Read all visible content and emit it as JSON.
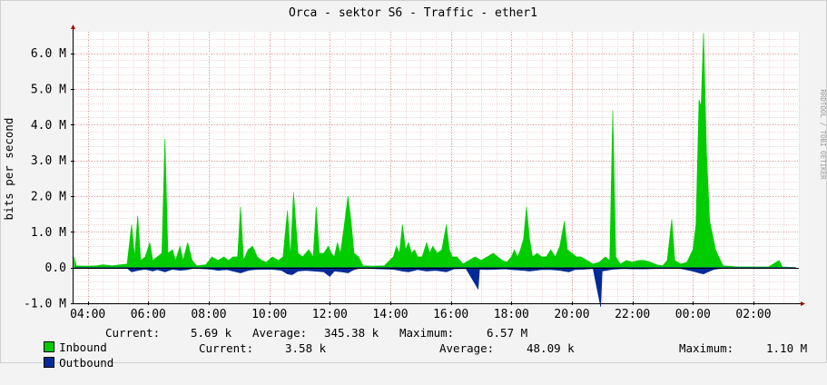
{
  "chart_data": {
    "type": "area",
    "title": "Orca - sektor S6 - Traffic - ether1",
    "ylabel": "bits per second",
    "xlabel": "",
    "ylim": [
      -1.0,
      6.6
    ],
    "y_ticks": [
      "-1.0 M",
      "0.0",
      "1.0 M",
      "2.0 M",
      "3.0 M",
      "4.0 M",
      "5.0 M",
      "6.0 M"
    ],
    "y_tick_values": [
      -1.0,
      0.0,
      1.0,
      2.0,
      3.0,
      4.0,
      5.0,
      6.0
    ],
    "x_range_hours": [
      3.5,
      27.5
    ],
    "x_ticks": [
      "04:00",
      "06:00",
      "08:00",
      "10:00",
      "12:00",
      "14:00",
      "16:00",
      "18:00",
      "20:00",
      "22:00",
      "00:00",
      "02:00"
    ],
    "x_tick_values": [
      4,
      6,
      8,
      10,
      12,
      14,
      16,
      18,
      20,
      22,
      24,
      26
    ],
    "grid": true,
    "watermark": "RRDTOOL / TOBI OETIKER",
    "series": [
      {
        "name": "Inbound",
        "color": "#00cc00",
        "unit": "M",
        "points": [
          [
            3.55,
            0.3
          ],
          [
            3.62,
            0.05
          ],
          [
            3.9,
            0.04
          ],
          [
            4.3,
            0.05
          ],
          [
            4.5,
            0.08
          ],
          [
            4.8,
            0.05
          ],
          [
            5.3,
            0.1
          ],
          [
            5.45,
            1.2
          ],
          [
            5.55,
            0.3
          ],
          [
            5.65,
            1.45
          ],
          [
            5.75,
            0.2
          ],
          [
            5.9,
            0.3
          ],
          [
            6.05,
            0.7
          ],
          [
            6.15,
            0.2
          ],
          [
            6.3,
            0.3
          ],
          [
            6.45,
            0.4
          ],
          [
            6.55,
            3.6
          ],
          [
            6.65,
            0.4
          ],
          [
            6.8,
            0.5
          ],
          [
            6.9,
            0.2
          ],
          [
            7.05,
            0.6
          ],
          [
            7.15,
            0.2
          ],
          [
            7.3,
            0.7
          ],
          [
            7.45,
            0.2
          ],
          [
            7.6,
            0.05
          ],
          [
            7.9,
            0.08
          ],
          [
            8.1,
            0.3
          ],
          [
            8.3,
            0.2
          ],
          [
            8.5,
            0.3
          ],
          [
            8.65,
            0.2
          ],
          [
            8.8,
            0.3
          ],
          [
            8.95,
            0.3
          ],
          [
            9.05,
            1.7
          ],
          [
            9.15,
            0.2
          ],
          [
            9.3,
            0.5
          ],
          [
            9.45,
            0.6
          ],
          [
            9.6,
            0.3
          ],
          [
            9.75,
            0.2
          ],
          [
            9.9,
            0.15
          ],
          [
            10.1,
            0.3
          ],
          [
            10.3,
            0.2
          ],
          [
            10.45,
            0.3
          ],
          [
            10.6,
            1.6
          ],
          [
            10.7,
            0.3
          ],
          [
            10.8,
            2.1
          ],
          [
            10.95,
            0.4
          ],
          [
            11.1,
            0.3
          ],
          [
            11.3,
            0.5
          ],
          [
            11.45,
            0.3
          ],
          [
            11.55,
            1.7
          ],
          [
            11.65,
            0.4
          ],
          [
            11.8,
            0.4
          ],
          [
            11.95,
            0.6
          ],
          [
            12.05,
            0.4
          ],
          [
            12.15,
            0.3
          ],
          [
            12.25,
            0.7
          ],
          [
            12.35,
            0.4
          ],
          [
            12.45,
            1.0
          ],
          [
            12.6,
            2.0
          ],
          [
            12.7,
            1.3
          ],
          [
            12.8,
            0.4
          ],
          [
            12.95,
            0.3
          ],
          [
            13.1,
            0.05
          ],
          [
            13.4,
            0.04
          ],
          [
            13.8,
            0.05
          ],
          [
            14.1,
            0.3
          ],
          [
            14.2,
            0.6
          ],
          [
            14.3,
            0.4
          ],
          [
            14.4,
            1.2
          ],
          [
            14.5,
            0.5
          ],
          [
            14.6,
            0.7
          ],
          [
            14.7,
            0.4
          ],
          [
            14.8,
            0.5
          ],
          [
            14.9,
            0.3
          ],
          [
            15.05,
            0.3
          ],
          [
            15.2,
            0.7
          ],
          [
            15.3,
            0.4
          ],
          [
            15.4,
            0.6
          ],
          [
            15.55,
            0.4
          ],
          [
            15.7,
            0.5
          ],
          [
            15.85,
            1.2
          ],
          [
            15.95,
            0.5
          ],
          [
            16.05,
            0.3
          ],
          [
            16.2,
            0.3
          ],
          [
            16.4,
            0.1
          ],
          [
            16.6,
            0.2
          ],
          [
            16.8,
            0.3
          ],
          [
            17.0,
            0.2
          ],
          [
            17.2,
            0.3
          ],
          [
            17.4,
            0.4
          ],
          [
            17.55,
            0.3
          ],
          [
            17.7,
            0.2
          ],
          [
            17.85,
            0.15
          ],
          [
            18.0,
            0.3
          ],
          [
            18.1,
            0.5
          ],
          [
            18.2,
            0.3
          ],
          [
            18.3,
            0.5
          ],
          [
            18.4,
            0.8
          ],
          [
            18.5,
            1.7
          ],
          [
            18.6,
            0.8
          ],
          [
            18.7,
            0.3
          ],
          [
            18.85,
            0.4
          ],
          [
            19.0,
            0.3
          ],
          [
            19.15,
            0.3
          ],
          [
            19.3,
            0.5
          ],
          [
            19.45,
            0.3
          ],
          [
            19.6,
            0.6
          ],
          [
            19.75,
            1.3
          ],
          [
            19.85,
            0.5
          ],
          [
            20.0,
            0.4
          ],
          [
            20.15,
            0.3
          ],
          [
            20.3,
            0.3
          ],
          [
            20.5,
            0.2
          ],
          [
            20.7,
            0.1
          ],
          [
            20.9,
            0.15
          ],
          [
            21.1,
            0.3
          ],
          [
            21.25,
            0.2
          ],
          [
            21.35,
            4.4
          ],
          [
            21.45,
            0.3
          ],
          [
            21.6,
            0.1
          ],
          [
            21.8,
            0.2
          ],
          [
            22.0,
            0.15
          ],
          [
            22.2,
            0.2
          ],
          [
            22.4,
            0.2
          ],
          [
            22.6,
            0.15
          ],
          [
            22.8,
            0.08
          ],
          [
            23.0,
            0.05
          ],
          [
            23.15,
            0.2
          ],
          [
            23.3,
            1.35
          ],
          [
            23.4,
            0.2
          ],
          [
            23.6,
            0.1
          ],
          [
            23.8,
            0.15
          ],
          [
            24.0,
            0.5
          ],
          [
            24.1,
            1.2
          ],
          [
            24.2,
            4.7
          ],
          [
            24.27,
            4.5
          ],
          [
            24.35,
            6.57
          ],
          [
            24.45,
            3.2
          ],
          [
            24.55,
            1.3
          ],
          [
            24.65,
            0.9
          ],
          [
            24.75,
            0.5
          ],
          [
            24.85,
            0.3
          ],
          [
            25.0,
            0.05
          ],
          [
            25.5,
            0.02
          ],
          [
            26.0,
            0.02
          ],
          [
            26.5,
            0.02
          ],
          [
            26.85,
            0.2
          ],
          [
            26.95,
            0.02
          ],
          [
            27.4,
            0.0
          ]
        ]
      },
      {
        "name": "Outbound",
        "color": "#002a97",
        "unit": "M",
        "points": [
          [
            3.55,
            -0.02
          ],
          [
            5.3,
            -0.02
          ],
          [
            5.45,
            -0.12
          ],
          [
            5.65,
            -0.08
          ],
          [
            5.9,
            -0.05
          ],
          [
            6.15,
            -0.1
          ],
          [
            6.3,
            -0.06
          ],
          [
            6.55,
            -0.12
          ],
          [
            6.8,
            -0.05
          ],
          [
            7.05,
            -0.08
          ],
          [
            7.3,
            -0.06
          ],
          [
            7.5,
            -0.02
          ],
          [
            8.1,
            -0.05
          ],
          [
            8.3,
            -0.08
          ],
          [
            8.6,
            -0.06
          ],
          [
            9.05,
            -0.15
          ],
          [
            9.3,
            -0.08
          ],
          [
            9.5,
            -0.06
          ],
          [
            9.8,
            -0.05
          ],
          [
            10.1,
            -0.05
          ],
          [
            10.4,
            -0.08
          ],
          [
            10.6,
            -0.18
          ],
          [
            10.75,
            -0.2
          ],
          [
            10.95,
            -0.1
          ],
          [
            11.2,
            -0.08
          ],
          [
            11.5,
            -0.1
          ],
          [
            11.8,
            -0.12
          ],
          [
            12.0,
            -0.25
          ],
          [
            12.15,
            -0.1
          ],
          [
            12.4,
            -0.12
          ],
          [
            12.6,
            -0.15
          ],
          [
            12.8,
            -0.06
          ],
          [
            13.0,
            -0.02
          ],
          [
            14.1,
            -0.05
          ],
          [
            14.4,
            -0.1
          ],
          [
            14.6,
            -0.12
          ],
          [
            14.9,
            -0.06
          ],
          [
            15.2,
            -0.1
          ],
          [
            15.5,
            -0.08
          ],
          [
            15.85,
            -0.12
          ],
          [
            16.1,
            -0.04
          ],
          [
            16.5,
            -0.03
          ],
          [
            16.9,
            -0.6
          ],
          [
            16.95,
            -0.05
          ],
          [
            17.2,
            -0.06
          ],
          [
            17.5,
            -0.05
          ],
          [
            17.8,
            -0.04
          ],
          [
            18.0,
            -0.06
          ],
          [
            18.4,
            -0.08
          ],
          [
            18.6,
            -0.1
          ],
          [
            19.0,
            -0.06
          ],
          [
            19.3,
            -0.06
          ],
          [
            19.6,
            -0.08
          ],
          [
            19.9,
            -0.12
          ],
          [
            20.1,
            -0.06
          ],
          [
            20.4,
            -0.05
          ],
          [
            20.7,
            -0.03
          ],
          [
            20.95,
            -1.1
          ],
          [
            21.0,
            -0.1
          ],
          [
            21.35,
            -0.05
          ],
          [
            21.7,
            -0.03
          ],
          [
            22.0,
            -0.04
          ],
          [
            22.4,
            -0.04
          ],
          [
            22.8,
            -0.03
          ],
          [
            23.2,
            -0.03
          ],
          [
            23.6,
            -0.03
          ],
          [
            24.0,
            -0.1
          ],
          [
            24.2,
            -0.15
          ],
          [
            24.35,
            -0.18
          ],
          [
            24.5,
            -0.12
          ],
          [
            24.7,
            -0.05
          ],
          [
            25.0,
            -0.02
          ],
          [
            27.4,
            0.0
          ]
        ]
      }
    ]
  },
  "legend": [
    {
      "name": "Inbound",
      "color": "#00cc00",
      "current_label": "Current:",
      "current": "5.69 k",
      "average_label": "Average:",
      "average": "345.38 k",
      "maximum_label": "Maximum:",
      "maximum": "6.57 M"
    },
    {
      "name": "Outbound",
      "color": "#002a97",
      "current_label": "Current:",
      "current": "3.58 k",
      "average_label": "Average:",
      "average": "48.09 k",
      "maximum_label": "Maximum:",
      "maximum": "1.10 M"
    }
  ]
}
